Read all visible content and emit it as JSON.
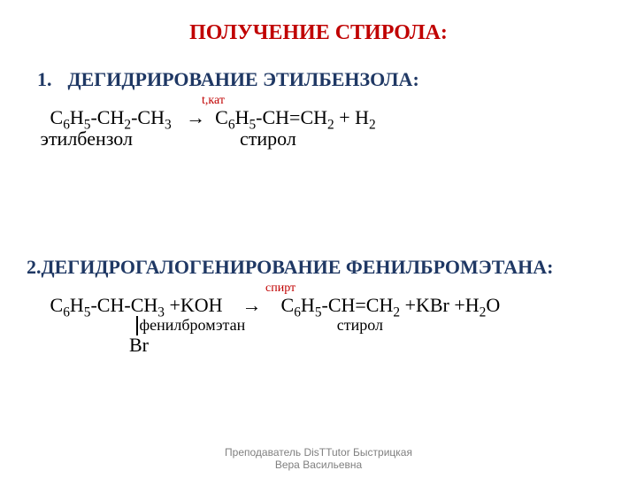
{
  "colors": {
    "title": "#c00000",
    "heading": "#1f3864",
    "body": "#000000",
    "condition": "#c00000",
    "footer": "#808080",
    "background": "#ffffff"
  },
  "title": "ПОЛУЧЕНИЕ СТИРОЛА:",
  "section1": {
    "number": "1.",
    "heading": "ДЕГИДРИРОВАНИЕ ЭТИЛБЕНЗОЛА:",
    "condition": "t,кат",
    "formula_prefix": "   C",
    "s1": "6",
    "f2": "H",
    "s2": "5",
    "f3": "-CH",
    "s3": "2",
    "f4": "-CH",
    "s4": "3",
    "arrow": "   →  C",
    "s5": "6",
    "f6": "H",
    "s6": "5",
    "f7": "-CH=CH",
    "s7": "2",
    "f8": " + H",
    "s8": "2",
    "label_left": " этилбензол",
    "label_right": "стирол",
    "label_gap": "                      "
  },
  "section2": {
    "number": "2. ",
    "heading": "ДЕГИДРОГАЛОГЕНИРОВАНИЕ ФЕНИЛБРОМЭТАНА:",
    "condition": "спирт",
    "p1": "   C",
    "s1": "6",
    "p2": "H",
    "s2": "5",
    "p3": "-CH-CH",
    "s3": "3",
    "p4": " +KOH    →    C",
    "s4": "6",
    "p5": "H",
    "s5": "5",
    "p6": "-CH=CH",
    "s6": "2",
    "p7": " +KBr +H",
    "s7": "2",
    "p8": "O",
    "label_mid": "   фенилбромэтан",
    "label_right": "стирол",
    "label_gap": "                       ",
    "br": "Br"
  },
  "footer_line1": "Преподаватель DisTTutor Быстрицкая",
  "footer_line2": "Вера Васильевна"
}
